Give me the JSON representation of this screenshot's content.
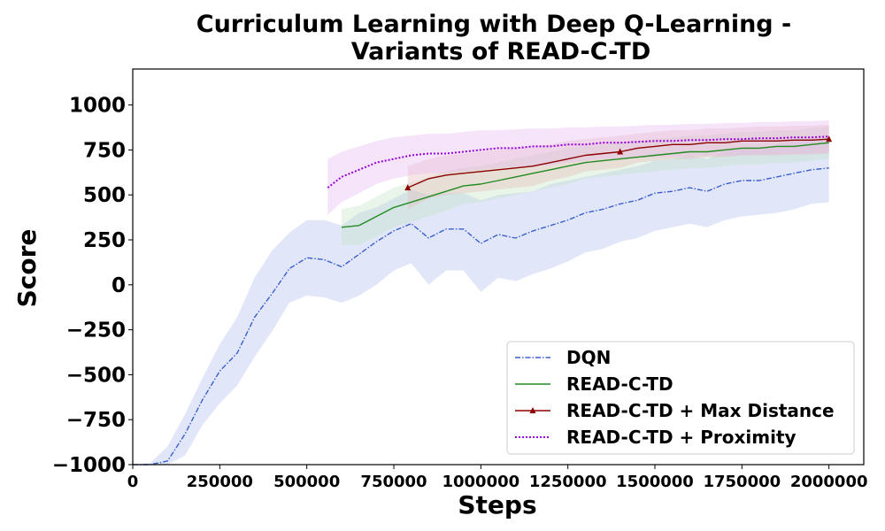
{
  "chart_data": {
    "type": "line",
    "title": [
      "Curriculum Learning with Deep Q-Learning -",
      "Variants of READ-C-TD"
    ],
    "xlabel": "Steps",
    "ylabel": "Score",
    "xlim": [
      0,
      2100000
    ],
    "ylim": [
      -1000,
      1200
    ],
    "xticks": [
      0,
      250000,
      500000,
      750000,
      1000000,
      1250000,
      1500000,
      1750000,
      2000000
    ],
    "xtick_labels": [
      "0",
      "250000",
      "500000",
      "750000",
      "1000000",
      "1250000",
      "1500000",
      "1750000",
      "2000000"
    ],
    "yticks": [
      -1000,
      -750,
      -500,
      -250,
      0,
      250,
      500,
      750,
      1000
    ],
    "ytick_labels": [
      "−1000",
      "−750",
      "−500",
      "−250",
      "0",
      "250",
      "500",
      "750",
      "1000"
    ],
    "legend_position": "lower-right",
    "grid": false,
    "series": [
      {
        "name": "DQN",
        "color": "#3a5fcd",
        "band_color": "#aabbee",
        "line_style": "dashdot",
        "x": [
          0,
          50000,
          100000,
          150000,
          200000,
          250000,
          300000,
          350000,
          400000,
          450000,
          500000,
          550000,
          600000,
          650000,
          700000,
          750000,
          800000,
          850000,
          900000,
          950000,
          1000000,
          1050000,
          1100000,
          1150000,
          1200000,
          1250000,
          1300000,
          1350000,
          1400000,
          1450000,
          1500000,
          1550000,
          1600000,
          1650000,
          1700000,
          1750000,
          1800000,
          1850000,
          1900000,
          1950000,
          2000000
        ],
        "y": [
          -1000,
          -1000,
          -980,
          -830,
          -640,
          -480,
          -380,
          -180,
          -50,
          90,
          150,
          140,
          100,
          170,
          240,
          300,
          340,
          260,
          310,
          310,
          230,
          280,
          260,
          300,
          330,
          360,
          400,
          420,
          450,
          470,
          510,
          520,
          540,
          520,
          560,
          580,
          580,
          600,
          620,
          640,
          650
        ],
        "upper": [
          -1000,
          -990,
          -900,
          -720,
          -520,
          -330,
          -180,
          40,
          190,
          290,
          360,
          360,
          330,
          400,
          430,
          480,
          530,
          500,
          510,
          510,
          470,
          500,
          510,
          520,
          560,
          580,
          600,
          620,
          640,
          660,
          690,
          700,
          720,
          700,
          740,
          760,
          760,
          780,
          800,
          810,
          820
        ],
        "lower": [
          -1000,
          -1000,
          -1000,
          -950,
          -780,
          -660,
          -560,
          -400,
          -260,
          -100,
          -60,
          -70,
          -100,
          -60,
          0,
          80,
          120,
          0,
          80,
          80,
          -40,
          40,
          20,
          60,
          90,
          130,
          180,
          200,
          240,
          260,
          300,
          320,
          340,
          320,
          360,
          380,
          390,
          400,
          420,
          450,
          460
        ]
      },
      {
        "name": "READ-C-TD",
        "color": "#228b22",
        "band_color": "#bfe3bf",
        "line_style": "solid",
        "x": [
          600000,
          650000,
          700000,
          750000,
          800000,
          850000,
          900000,
          950000,
          1000000,
          1050000,
          1100000,
          1150000,
          1200000,
          1250000,
          1300000,
          1350000,
          1400000,
          1450000,
          1500000,
          1550000,
          1600000,
          1650000,
          1700000,
          1750000,
          1800000,
          1850000,
          1900000,
          1950000,
          2000000
        ],
        "y": [
          320,
          330,
          380,
          430,
          460,
          490,
          520,
          550,
          560,
          580,
          600,
          620,
          640,
          660,
          680,
          690,
          700,
          710,
          720,
          730,
          740,
          740,
          750,
          760,
          760,
          770,
          770,
          780,
          790
        ],
        "upper": [
          420,
          440,
          490,
          540,
          570,
          600,
          630,
          650,
          660,
          680,
          700,
          720,
          740,
          760,
          770,
          780,
          790,
          800,
          810,
          820,
          830,
          830,
          840,
          850,
          850,
          860,
          860,
          870,
          880
        ],
        "lower": [
          220,
          220,
          270,
          320,
          350,
          380,
          410,
          450,
          460,
          480,
          500,
          520,
          540,
          560,
          590,
          600,
          610,
          620,
          630,
          640,
          650,
          650,
          660,
          670,
          670,
          680,
          680,
          690,
          700
        ]
      },
      {
        "name": "READ-C-TD + Max Distance",
        "color": "#8b0000",
        "band_color": "#e4b4b4",
        "line_style": "solid",
        "marker": "triangle",
        "x": [
          790000,
          850000,
          900000,
          950000,
          1000000,
          1050000,
          1100000,
          1150000,
          1200000,
          1250000,
          1300000,
          1350000,
          1400000,
          1450000,
          1500000,
          1550000,
          1600000,
          1650000,
          1700000,
          1750000,
          1800000,
          1850000,
          1900000,
          1950000,
          2000000
        ],
        "y": [
          540,
          590,
          610,
          620,
          630,
          640,
          650,
          660,
          680,
          700,
          720,
          730,
          740,
          760,
          770,
          780,
          780,
          790,
          790,
          800,
          800,
          800,
          805,
          805,
          810
        ],
        "upper": [
          660,
          700,
          720,
          730,
          740,
          750,
          760,
          770,
          780,
          800,
          810,
          820,
          830,
          840,
          850,
          860,
          860,
          870,
          870,
          875,
          880,
          880,
          885,
          885,
          890
        ],
        "lower": [
          420,
          480,
          500,
          510,
          520,
          530,
          540,
          550,
          580,
          600,
          630,
          640,
          650,
          680,
          690,
          700,
          700,
          710,
          710,
          720,
          720,
          720,
          725,
          725,
          730
        ]
      },
      {
        "name": "READ-C-TD + Proximity",
        "color": "#9400d3",
        "band_color": "#e6b5f0",
        "line_style": "dotted",
        "x": [
          560000,
          600000,
          650000,
          700000,
          750000,
          800000,
          850000,
          900000,
          950000,
          1000000,
          1050000,
          1100000,
          1150000,
          1200000,
          1250000,
          1300000,
          1350000,
          1400000,
          1450000,
          1500000,
          1550000,
          1600000,
          1650000,
          1700000,
          1750000,
          1800000,
          1850000,
          1900000,
          1950000,
          2000000
        ],
        "y": [
          540,
          600,
          640,
          680,
          700,
          720,
          730,
          730,
          740,
          750,
          760,
          760,
          770,
          770,
          780,
          780,
          790,
          790,
          795,
          800,
          800,
          805,
          805,
          810,
          810,
          815,
          815,
          820,
          820,
          825
        ],
        "upper": [
          700,
          740,
          770,
          800,
          820,
          830,
          840,
          840,
          850,
          860,
          860,
          865,
          870,
          870,
          875,
          875,
          880,
          880,
          885,
          890,
          890,
          895,
          895,
          900,
          900,
          905,
          905,
          910,
          910,
          915
        ],
        "lower": [
          390,
          460,
          510,
          560,
          590,
          610,
          620,
          620,
          630,
          640,
          650,
          655,
          660,
          665,
          680,
          690,
          700,
          700,
          705,
          710,
          710,
          715,
          715,
          720,
          720,
          725,
          725,
          730,
          730,
          735
        ]
      }
    ]
  }
}
